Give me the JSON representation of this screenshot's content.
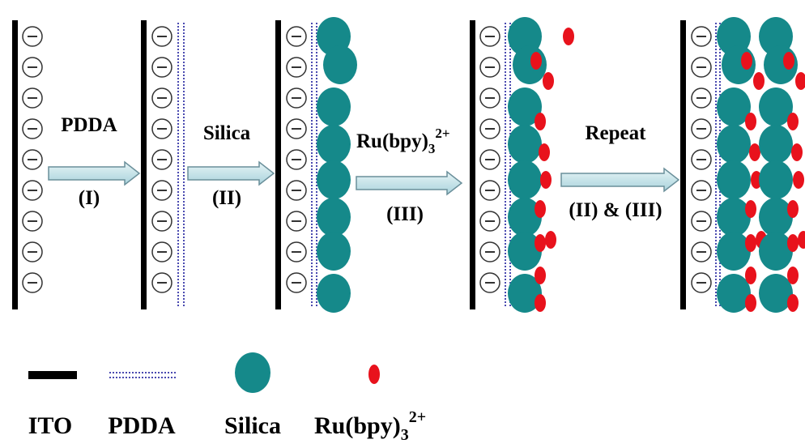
{
  "steps": [
    {
      "label": "PDDA",
      "step": "(I)"
    },
    {
      "label": "Silica",
      "step": "(II)"
    },
    {
      "label": {
        "base": "Ru(bpy)",
        "sub": "3",
        "sup": "2+"
      },
      "step": "(III)"
    },
    {
      "label": "Repeat",
      "step": "(II) & (III)"
    }
  ],
  "legend": [
    {
      "label": "ITO"
    },
    {
      "label": "PDDA"
    },
    {
      "label": "Silica"
    },
    {
      "label": {
        "base": "Ru(bpy)",
        "sub": "3",
        "sup": "2+"
      }
    }
  ]
}
